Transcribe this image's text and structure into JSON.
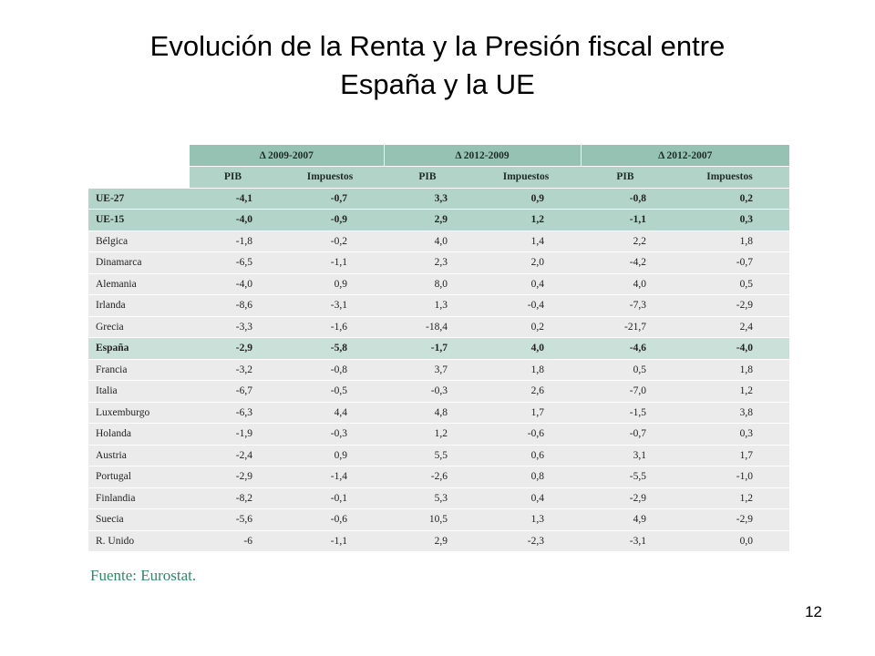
{
  "slide": {
    "title_line1": "Evolución de la Renta y la Presión fiscal entre",
    "title_line2": "España y la UE",
    "page_number": "12"
  },
  "table": {
    "period_headers": [
      "Δ 2009-2007",
      "Δ 2012-2009",
      "Δ 2012-2007"
    ],
    "sub_headers": [
      "PIB",
      "Impuestos",
      "PIB",
      "Impuestos",
      "PIB",
      "Impuestos"
    ],
    "rows": [
      {
        "label": "UE-27",
        "values": [
          "-4,1",
          "-0,7",
          "3,3",
          "0,9",
          "-0,8",
          "0,2"
        ]
      },
      {
        "label": "UE-15",
        "values": [
          "-4,0",
          "-0,9",
          "2,9",
          "1,2",
          "-1,1",
          "0,3"
        ]
      },
      {
        "label": "Bélgica",
        "values": [
          "-1,8",
          "-0,2",
          "4,0",
          "1,4",
          "2,2",
          "1,8"
        ]
      },
      {
        "label": "Dinamarca",
        "values": [
          "-6,5",
          "-1,1",
          "2,3",
          "2,0",
          "-4,2",
          "-0,7"
        ]
      },
      {
        "label": "Alemania",
        "values": [
          "-4,0",
          "0,9",
          "8,0",
          "0,4",
          "4,0",
          "0,5"
        ]
      },
      {
        "label": "Irlanda",
        "values": [
          "-8,6",
          "-3,1",
          "1,3",
          "-0,4",
          "-7,3",
          "-2,9"
        ]
      },
      {
        "label": "Grecia",
        "values": [
          "-3,3",
          "-1,6",
          "-18,4",
          "0,2",
          "-21,7",
          "2,4"
        ]
      },
      {
        "label": "España",
        "values": [
          "-2,9",
          "-5,8",
          "-1,7",
          "4,0",
          "-4,6",
          "-4,0"
        ]
      },
      {
        "label": "Francia",
        "values": [
          "-3,2",
          "-0,8",
          "3,7",
          "1,8",
          "0,5",
          "1,8"
        ]
      },
      {
        "label": "Italia",
        "values": [
          "-6,7",
          "-0,5",
          "-0,3",
          "2,6",
          "-7,0",
          "1,2"
        ]
      },
      {
        "label": "Luxemburgo",
        "values": [
          "-6,3",
          "4,4",
          "4,8",
          "1,7",
          "-1,5",
          "3,8"
        ]
      },
      {
        "label": "Holanda",
        "values": [
          "-1,9",
          "-0,3",
          "1,2",
          "-0,6",
          "-0,7",
          "0,3"
        ]
      },
      {
        "label": "Austria",
        "values": [
          "-2,4",
          "0,9",
          "5,5",
          "0,6",
          "3,1",
          "1,7"
        ]
      },
      {
        "label": "Portugal",
        "values": [
          "-2,9",
          "-1,4",
          "-2,6",
          "0,8",
          "-5,5",
          "-1,0"
        ]
      },
      {
        "label": "Finlandia",
        "values": [
          "-8,2",
          "-0,1",
          "5,3",
          "0,4",
          "-2,9",
          "1,2"
        ]
      },
      {
        "label": "Suecia",
        "values": [
          "-5,6",
          "-0,6",
          "10,5",
          "1,3",
          "4,9",
          "-2,9"
        ]
      },
      {
        "label": "R. Unido",
        "values": [
          "-6",
          "-1,1",
          "2,9",
          "-2,3",
          "-3,1",
          "0,0"
        ]
      }
    ]
  },
  "source": "Fuente: Eurostat.",
  "colors": {
    "header_band": "#96c2b4",
    "eu_rows": "#b3d4c9",
    "spain_row": "#c9e1d9",
    "plain_rows": "#ebebeb",
    "source_text": "#2f8a68"
  }
}
